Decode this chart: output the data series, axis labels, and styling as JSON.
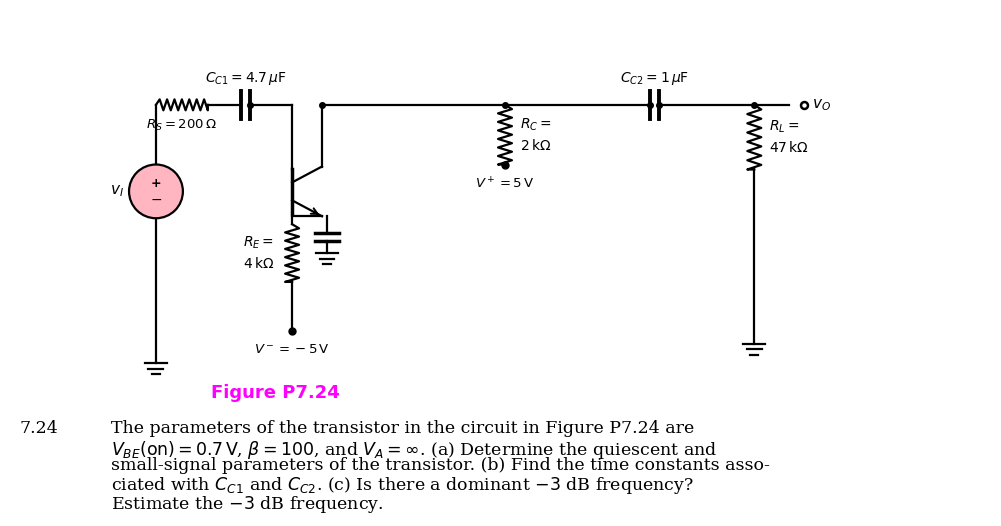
{
  "figure_label": "Figure P7.24",
  "figure_label_color": "#FF00FF",
  "figure_label_fontsize": 13,
  "bg_color": "#ffffff",
  "Rs_label": "$R_S = 200\\,\\Omega$",
  "CC1_label": "$C_{C1} = 4.7\\,\\mu\\mathrm{F}$",
  "CC2_label": "$C_{C2} = 1\\,\\mu\\mathrm{F}$",
  "RE_label": "$R_E =$\n$4\\,\\mathrm{k}\\Omega$",
  "RC_label": "$R_C =$\n$2\\,\\mathrm{k}\\Omega$",
  "RL_label": "$R_L =$\n$47\\,\\mathrm{k}\\Omega$",
  "Vminus_label": "$V^-=-5\\,\\mathrm{V}$",
  "Vplus_label": "$V^+=5\\,\\mathrm{V}$",
  "vo_label": "$v_O$",
  "vi_label": "$v_I$",
  "problem_number": "7.24",
  "problem_text_line1": "The parameters of the transistor in the circuit in Figure P7.24 are",
  "problem_text_line2": "$V_{BE}(\\mathrm{on}) = 0.7\\,\\mathrm{V}$, $\\beta = 100$, and $V_A = \\infty$. (a) Determine the quiescent and",
  "problem_text_line3": "small-signal parameters of the transistor. (b) Find the time constants asso-",
  "problem_text_line4": "ciated with $C_{C1}$ and $C_{C2}$. (c) Is there a dominant $-3$ dB frequency?",
  "problem_text_line5": "Estimate the $-3$ dB frequency.",
  "text_fontsize": 12.5
}
